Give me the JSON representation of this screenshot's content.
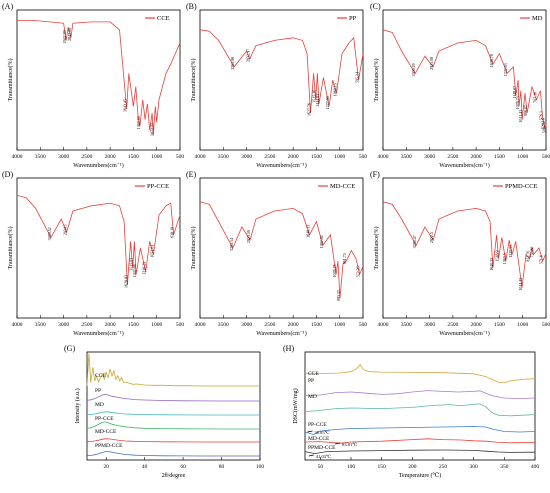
{
  "figure": {
    "ftir_xlabel": "Wavenumbers(cm⁻¹)",
    "ftir_ylabel": "Transmittance(%)",
    "ftir_xticks": [
      4000,
      3500,
      3000,
      2500,
      2000,
      1500,
      1000,
      500
    ],
    "trace_color": "#e8403a",
    "xrd_colors": [
      "#c8a830",
      "#8f67c7",
      "#45b7b0",
      "#3fb765",
      "#e8403a",
      "#4a6fc2"
    ],
    "dsc_colors": [
      "#d9a441",
      "#a77bd1",
      "#5bb6a6",
      "#3f7fd0",
      "#e8403a",
      "#333333"
    ]
  },
  "chart_data": [
    {
      "type": "line",
      "panel_label": "(A)",
      "legend": "CCE",
      "xlabel": "Wavenumbers(cm⁻¹)",
      "ylabel": "Transmittance(%)",
      "xlim": [
        4000,
        500
      ],
      "peak_labels": [
        "2942.89",
        "2843.06",
        "1643.45",
        "1360.65",
        "1072.31"
      ],
      "series": [
        {
          "name": "CCE",
          "x": [
            4000,
            3600,
            3300,
            3000,
            2942.89,
            2900,
            2843.06,
            2800,
            2400,
            2000,
            1800,
            1643.45,
            1600,
            1500,
            1450,
            1400,
            1360.65,
            1300,
            1250,
            1200,
            1150,
            1100,
            1072.31,
            1030,
            1000,
            950,
            900,
            800,
            700,
            600,
            500
          ],
          "y": [
            0.95,
            0.95,
            0.94,
            0.93,
            0.8,
            0.9,
            0.82,
            0.93,
            0.94,
            0.94,
            0.88,
            0.28,
            0.55,
            0.3,
            0.45,
            0.22,
            0.15,
            0.35,
            0.2,
            0.32,
            0.12,
            0.25,
            0.08,
            0.3,
            0.18,
            0.35,
            0.42,
            0.55,
            0.62,
            0.7,
            0.78
          ]
        }
      ]
    },
    {
      "type": "line",
      "panel_label": "(B)",
      "legend": "PP",
      "xlabel": "Wavenumbers(cm⁻¹)",
      "ylabel": "Transmittance(%)",
      "xlim": [
        4000,
        500
      ],
      "peak_labels": [
        "3265.96",
        "2932.97",
        "1627.76",
        "1515.16",
        "1444.81",
        "1227.66",
        "1069.15",
        "595.14"
      ],
      "series": [
        {
          "name": "PP",
          "x": [
            4000,
            3800,
            3600,
            3265.96,
            3000,
            2932.97,
            2800,
            2400,
            2000,
            1800,
            1700,
            1627.76,
            1560,
            1515.16,
            1480,
            1444.81,
            1350,
            1227.66,
            1150,
            1069.15,
            950,
            800,
            700,
            595.14,
            500
          ],
          "y": [
            0.88,
            0.87,
            0.8,
            0.6,
            0.72,
            0.66,
            0.76,
            0.8,
            0.82,
            0.8,
            0.7,
            0.25,
            0.55,
            0.35,
            0.55,
            0.32,
            0.52,
            0.3,
            0.5,
            0.4,
            0.7,
            0.78,
            0.82,
            0.5,
            0.7
          ]
        }
      ]
    },
    {
      "type": "line",
      "panel_label": "(C)",
      "legend": "MD",
      "xlabel": "Wavenumbers(cm⁻¹)",
      "ylabel": "Transmittance(%)",
      "xlim": [
        4000,
        500
      ],
      "peak_labels": [
        "3309.29",
        "2925.08",
        "1638.78",
        "1332.63",
        "1148.07",
        "1078.73",
        "1011.43",
        "906.07",
        "707.16",
        "576.1",
        "528.16",
        "506.79"
      ],
      "series": [
        {
          "name": "MD",
          "x": [
            4000,
            3800,
            3600,
            3309.29,
            3100,
            2925.08,
            2800,
            2400,
            2000,
            1800,
            1638.78,
            1500,
            1332.63,
            1200,
            1148.07,
            1100,
            1078.73,
            1040,
            1011.43,
            950,
            906.07,
            800,
            707.16,
            620,
            576.1,
            528.16,
            506.79,
            500
          ],
          "y": [
            0.88,
            0.86,
            0.72,
            0.55,
            0.68,
            0.6,
            0.72,
            0.78,
            0.8,
            0.76,
            0.62,
            0.7,
            0.55,
            0.6,
            0.38,
            0.5,
            0.3,
            0.42,
            0.2,
            0.4,
            0.25,
            0.45,
            0.35,
            0.42,
            0.22,
            0.15,
            0.12,
            0.18
          ]
        }
      ]
    },
    {
      "type": "line",
      "panel_label": "(D)",
      "legend": "PP-CCE",
      "xlabel": "Wavenumbers(cm⁻¹)",
      "ylabel": "Transmittance(%)",
      "xlim": [
        4000,
        500
      ],
      "peak_labels": [
        "3269.52",
        "2934.1",
        "1628.83",
        "1515.03",
        "1442.68",
        "1236.29",
        "1071.61",
        "638.19"
      ],
      "series": [
        {
          "name": "PP-CCE",
          "x": [
            4000,
            3800,
            3600,
            3269.52,
            3050,
            2934.1,
            2800,
            2400,
            2000,
            1800,
            1700,
            1628.83,
            1560,
            1515.03,
            1480,
            1442.68,
            1350,
            1236.29,
            1150,
            1071.61,
            950,
            800,
            700,
            638.19,
            500
          ],
          "y": [
            0.9,
            0.88,
            0.8,
            0.58,
            0.72,
            0.62,
            0.78,
            0.82,
            0.84,
            0.82,
            0.7,
            0.22,
            0.55,
            0.35,
            0.55,
            0.3,
            0.5,
            0.32,
            0.55,
            0.45,
            0.75,
            0.82,
            0.84,
            0.6,
            0.75
          ]
        }
      ]
    },
    {
      "type": "line",
      "panel_label": "(E)",
      "legend": "MD-CCE",
      "xlabel": "Wavenumbers(cm⁻¹)",
      "ylabel": "Transmittance(%)",
      "xlim": [
        4000,
        500
      ],
      "peak_labels": [
        "3295.14",
        "2923.59",
        "1648.13",
        "1362.92",
        "1078.28",
        "993.37",
        "861.75",
        "572.26"
      ],
      "series": [
        {
          "name": "MD-CCE",
          "x": [
            4000,
            3800,
            3600,
            3295.14,
            3100,
            2923.59,
            2800,
            2400,
            2000,
            1800,
            1648.13,
            1500,
            1362.92,
            1200,
            1078.28,
            1040,
            993.37,
            930,
            861.75,
            750,
            650,
            572.26,
            500
          ],
          "y": [
            0.85,
            0.83,
            0.7,
            0.5,
            0.66,
            0.56,
            0.72,
            0.78,
            0.8,
            0.76,
            0.6,
            0.7,
            0.52,
            0.6,
            0.3,
            0.4,
            0.12,
            0.38,
            0.4,
            0.48,
            0.42,
            0.3,
            0.36
          ]
        }
      ]
    },
    {
      "type": "line",
      "panel_label": "(F)",
      "legend": "PPMD-CCE",
      "xlabel": "Wavenumbers(cm⁻¹)",
      "ylabel": "Transmittance(%)",
      "xlim": [
        4000,
        500
      ],
      "peak_labels": [
        "3286.47",
        "2922.5",
        "1640.33",
        "1518.9",
        "1363.5",
        "1229.95",
        "1014.42",
        "853.76",
        "770.88",
        "571.6"
      ],
      "series": [
        {
          "name": "PPMD-CCE",
          "x": [
            4000,
            3800,
            3600,
            3286.47,
            3100,
            2922.5,
            2800,
            2400,
            2000,
            1800,
            1700,
            1640.33,
            1560,
            1518.9,
            1450,
            1363.5,
            1290,
            1229.95,
            1150,
            1014.42,
            930,
            853.76,
            800,
            770.88,
            650,
            571.6,
            500
          ],
          "y": [
            0.85,
            0.83,
            0.72,
            0.52,
            0.66,
            0.56,
            0.72,
            0.78,
            0.8,
            0.78,
            0.7,
            0.35,
            0.6,
            0.42,
            0.58,
            0.4,
            0.56,
            0.45,
            0.55,
            0.2,
            0.45,
            0.42,
            0.5,
            0.45,
            0.5,
            0.4,
            0.46
          ]
        }
      ]
    },
    {
      "type": "line",
      "panel_label": "(G)",
      "xlabel": "2θ/degree",
      "ylabel": "Intensity (a.u.)",
      "xlim": [
        10,
        100
      ],
      "xticks": [
        20,
        40,
        60,
        80,
        100
      ],
      "series": [
        {
          "name": "CCE",
          "x": [
            10,
            11,
            12,
            13,
            14,
            15,
            16,
            17,
            18,
            19,
            20,
            21,
            22,
            23,
            24,
            25,
            26,
            27,
            28,
            29,
            30,
            32,
            34,
            36,
            38,
            40,
            45,
            50,
            55,
            60,
            70,
            80,
            90,
            100
          ],
          "y": [
            0.0,
            0.95,
            0.1,
            0.55,
            0.15,
            0.3,
            0.12,
            0.25,
            0.35,
            0.2,
            0.4,
            0.25,
            0.5,
            0.3,
            0.45,
            0.2,
            0.3,
            0.15,
            0.25,
            0.1,
            0.12,
            0.08,
            0.05,
            0.06,
            0.04,
            0.03,
            0.02,
            0.02,
            0.01,
            0.01,
            0.0,
            0.0,
            0.0,
            0.0
          ]
        },
        {
          "name": "PP",
          "x": [
            10,
            12,
            14,
            16,
            18,
            19.5,
            21,
            23,
            26,
            30,
            35,
            40,
            50,
            60,
            70,
            80,
            90,
            100
          ],
          "y": [
            0.05,
            0.1,
            0.2,
            0.35,
            0.5,
            0.55,
            0.5,
            0.4,
            0.3,
            0.2,
            0.12,
            0.08,
            0.04,
            0.02,
            0.01,
            0.0,
            0.0,
            0.0
          ]
        },
        {
          "name": "MD",
          "x": [
            10,
            12,
            14,
            16,
            18,
            20,
            22,
            24,
            27,
            30,
            35,
            40,
            50,
            60,
            70,
            80,
            90,
            100
          ],
          "y": [
            0.02,
            0.05,
            0.1,
            0.18,
            0.28,
            0.32,
            0.28,
            0.22,
            0.15,
            0.1,
            0.06,
            0.04,
            0.02,
            0.01,
            0.0,
            0.0,
            0.0,
            0.0
          ]
        },
        {
          "name": "PP-CCE",
          "x": [
            10,
            12,
            14,
            16,
            18,
            19.5,
            21,
            23,
            26,
            30,
            35,
            40,
            50,
            60,
            70,
            80,
            90,
            100
          ],
          "y": [
            0.05,
            0.1,
            0.22,
            0.38,
            0.55,
            0.6,
            0.52,
            0.4,
            0.28,
            0.18,
            0.1,
            0.06,
            0.03,
            0.02,
            0.01,
            0.0,
            0.0,
            0.0
          ]
        },
        {
          "name": "MD-CCE",
          "x": [
            10,
            12,
            14,
            16,
            18,
            20,
            22,
            24,
            27,
            30,
            35,
            40,
            50,
            60,
            70,
            80,
            90,
            100
          ],
          "y": [
            0.02,
            0.05,
            0.1,
            0.18,
            0.28,
            0.33,
            0.3,
            0.24,
            0.16,
            0.1,
            0.06,
            0.04,
            0.02,
            0.01,
            0.0,
            0.0,
            0.0,
            0.0
          ]
        },
        {
          "name": "PPMD-CCE",
          "x": [
            10,
            12,
            14,
            16,
            18,
            20,
            22,
            24,
            27,
            30,
            35,
            40,
            50,
            60,
            70,
            80,
            90,
            100
          ],
          "y": [
            0.02,
            0.06,
            0.12,
            0.22,
            0.35,
            0.45,
            0.42,
            0.34,
            0.24,
            0.15,
            0.08,
            0.05,
            0.02,
            0.01,
            0.0,
            0.0,
            0.0,
            0.0
          ]
        }
      ]
    },
    {
      "type": "line",
      "panel_label": "(H)",
      "xlabel": "Temperature (℃)",
      "ylabel": "DSC(mW/mg)",
      "xlim": [
        25,
        400
      ],
      "xticks": [
        50,
        100,
        150,
        200,
        250,
        300,
        350,
        400
      ],
      "annotations": [
        "38.85℃",
        "83.81℃",
        "41.03℃"
      ],
      "series": [
        {
          "name": "CCE",
          "x": [
            25,
            50,
            80,
            100,
            110,
            115,
            120,
            130,
            150,
            200,
            250,
            300,
            320,
            340,
            350,
            360,
            380,
            400
          ],
          "y": [
            0.3,
            0.32,
            0.35,
            0.45,
            0.7,
            0.95,
            0.6,
            0.45,
            0.42,
            0.4,
            0.38,
            0.3,
            0.1,
            -0.3,
            -0.35,
            -0.2,
            -0.1,
            -0.05
          ]
        },
        {
          "name": "PP",
          "x": [
            25,
            50,
            75,
            100,
            125,
            150,
            175,
            200,
            225,
            250,
            275,
            300,
            310,
            320,
            330,
            350,
            375,
            400
          ],
          "y": [
            0.2,
            0.25,
            0.45,
            0.5,
            0.4,
            0.3,
            0.35,
            0.5,
            0.62,
            0.55,
            0.5,
            0.55,
            0.6,
            0.4,
            0.2,
            0.0,
            -0.05,
            0.0
          ]
        },
        {
          "name": "MD",
          "x": [
            25,
            50,
            75,
            100,
            150,
            200,
            230,
            260,
            280,
            300,
            310,
            320,
            330,
            340,
            360,
            380,
            400
          ],
          "y": [
            0.2,
            0.3,
            0.45,
            0.5,
            0.45,
            0.55,
            0.7,
            0.78,
            0.7,
            0.8,
            0.85,
            0.6,
            0.1,
            -0.1,
            -0.15,
            -0.1,
            -0.05
          ]
        },
        {
          "name": "PP-CCE",
          "x": [
            25,
            38.85,
            50,
            75,
            100,
            150,
            200,
            250,
            300,
            320,
            330,
            350,
            375,
            400
          ],
          "y": [
            0.0,
            -0.25,
            0.1,
            0.25,
            0.35,
            0.4,
            0.45,
            0.5,
            0.55,
            0.5,
            0.3,
            0.05,
            0.0,
            0.05
          ]
        },
        {
          "name": "MD-CCE",
          "x": [
            25,
            50,
            83.81,
            100,
            150,
            200,
            225,
            250,
            280,
            300,
            320,
            340,
            360,
            400
          ],
          "y": [
            0.0,
            0.05,
            -0.15,
            0.0,
            0.1,
            0.3,
            0.4,
            0.3,
            0.25,
            0.15,
            0.1,
            -0.05,
            -0.1,
            -0.05
          ]
        },
        {
          "name": "PPMD-CCE",
          "x": [
            25,
            41.03,
            60,
            100,
            150,
            200,
            250,
            300,
            320,
            340,
            360,
            400
          ],
          "y": [
            0.05,
            -0.2,
            0.05,
            0.12,
            0.18,
            0.22,
            0.25,
            0.2,
            0.1,
            0.0,
            -0.05,
            -0.02
          ]
        }
      ]
    }
  ]
}
